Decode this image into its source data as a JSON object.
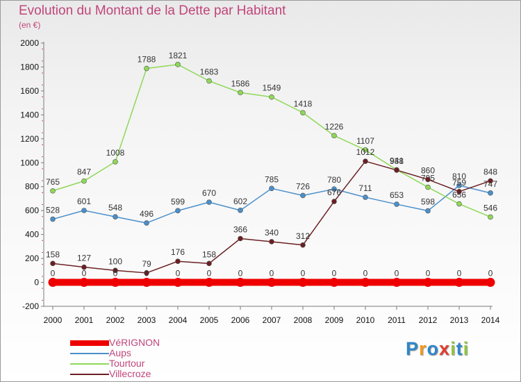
{
  "chart_data": {
    "type": "line",
    "title": "Evolution du Montant de la Dette par Habitant",
    "unit": "(en €)",
    "x": [
      "2000",
      "2001",
      "2002",
      "2003",
      "2004",
      "2005",
      "2006",
      "2007",
      "2008",
      "2009",
      "2010",
      "2011",
      "2012",
      "2013",
      "2014"
    ],
    "y_ticks": [
      "2000",
      "1800",
      "1600",
      "1400",
      "1200",
      "1000",
      "800",
      "600",
      "400",
      "200",
      "0",
      "-200"
    ],
    "ylim": [
      -200,
      2000
    ],
    "grid": false,
    "legend_position": "bottom-left",
    "series": [
      {
        "name": "VéRIGNON",
        "color": "#ee0000",
        "values": [
          0,
          0,
          0,
          0,
          0,
          0,
          0,
          0,
          0,
          0,
          0,
          0,
          0,
          0,
          0
        ],
        "labels": [
          "0",
          "0",
          "0",
          "0",
          "0",
          "0",
          "0",
          "0",
          "0",
          "0",
          "0",
          "0",
          "0",
          "0",
          "0"
        ]
      },
      {
        "name": "Aups",
        "color": "#4a8fcb",
        "values": [
          528,
          601,
          548,
          496,
          599,
          670,
          602,
          785,
          726,
          780,
          711,
          653,
          598,
          810,
          747
        ],
        "labels": [
          "528",
          "601",
          "548",
          "496",
          "599",
          "670",
          "602",
          "785",
          "726",
          "780",
          "711",
          "653",
          "598",
          "810",
          "747"
        ]
      },
      {
        "name": "Tourtour",
        "color": "#8fd857",
        "values": [
          765,
          847,
          1008,
          1788,
          1821,
          1683,
          1586,
          1549,
          1418,
          1226,
          1107,
          941,
          795,
          656,
          546
        ],
        "labels": [
          "765",
          "847",
          "1008",
          "1788",
          "1821",
          "1683",
          "1586",
          "1549",
          "1418",
          "1226",
          "1107",
          "941",
          "795",
          "656",
          "546"
        ]
      },
      {
        "name": "Villecroze",
        "color": "#6b1f23",
        "values": [
          158,
          127,
          100,
          79,
          176,
          158,
          366,
          340,
          312,
          676,
          1012,
          938,
          860,
          759,
          848
        ],
        "labels": [
          "158",
          "127",
          "100",
          "79",
          "176",
          "158",
          "366",
          "340",
          "312",
          "676",
          "1012",
          "938",
          "860",
          "759",
          "848"
        ]
      }
    ]
  },
  "brand": {
    "letters": [
      "P",
      "r",
      "o",
      "x",
      "i",
      "t",
      "i"
    ],
    "colors": [
      "#2f86c8",
      "#f39a1e",
      "#2f86c8",
      "#e23c2e",
      "#8fc63f",
      "#2f86c8",
      "#8fc63f"
    ]
  }
}
